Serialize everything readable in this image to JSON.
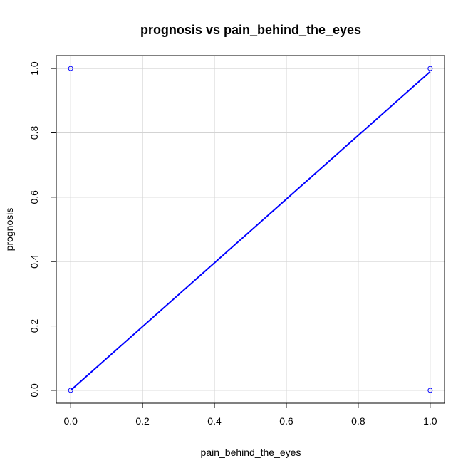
{
  "chart_data": {
    "type": "scatter",
    "title": "prognosis vs pain_behind_the_eyes",
    "xlabel": "pain_behind_the_eyes",
    "ylabel": "prognosis",
    "xlim": [
      0,
      1
    ],
    "ylim": [
      0,
      1
    ],
    "xticks": [
      "0.0",
      "0.2",
      "0.4",
      "0.6",
      "0.8",
      "1.0"
    ],
    "yticks": [
      "0.0",
      "0.2",
      "0.4",
      "0.6",
      "0.8",
      "1.0"
    ],
    "xtick_values": [
      0,
      0.2,
      0.4,
      0.6,
      0.8,
      1.0
    ],
    "ytick_values": [
      0,
      0.2,
      0.4,
      0.6,
      0.8,
      1.0
    ],
    "grid": true,
    "points": [
      {
        "x": 0,
        "y": 1
      },
      {
        "x": 0,
        "y": 0
      },
      {
        "x": 1,
        "y": 1
      },
      {
        "x": 1,
        "y": 0
      }
    ],
    "trend_line": {
      "x": [
        0,
        1
      ],
      "y": [
        0,
        0.99
      ]
    },
    "colors": {
      "points": "#0000ff",
      "line": "#0000ff",
      "grid": "#d3d3d3",
      "axes": "#000000"
    }
  }
}
